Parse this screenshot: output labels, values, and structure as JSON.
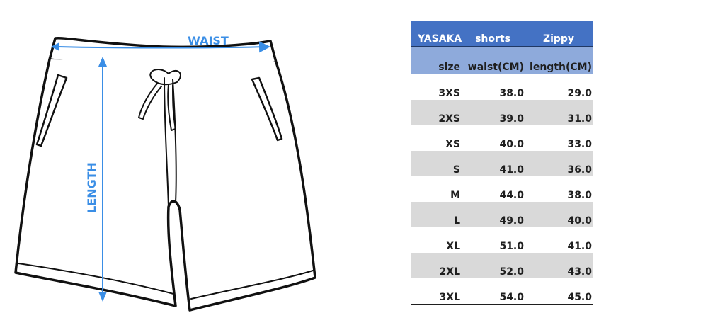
{
  "diagram": {
    "waist_label": "WAIST",
    "length_label": "LENGTH",
    "arrow_color": "#3a8ee6"
  },
  "size_chart": {
    "brand": "YASAKA",
    "product": "shorts",
    "product_name": "Zippy",
    "headers": [
      "size",
      "waist(CM)",
      "length(CM)"
    ],
    "rows": [
      {
        "size": "3XS",
        "waist": "38.0",
        "length": "29.0"
      },
      {
        "size": "2XS",
        "waist": "39.0",
        "length": "31.0"
      },
      {
        "size": "XS",
        "waist": "40.0",
        "length": "33.0"
      },
      {
        "size": "S",
        "waist": "41.0",
        "length": "36.0"
      },
      {
        "size": "M",
        "waist": "44.0",
        "length": "38.0"
      },
      {
        "size": "L",
        "waist": "49.0",
        "length": "40.0"
      },
      {
        "size": "XL",
        "waist": "51.0",
        "length": "41.0"
      },
      {
        "size": "2XL",
        "waist": "52.0",
        "length": "43.0"
      },
      {
        "size": "3XL",
        "waist": "54.0",
        "length": "45.0"
      }
    ],
    "colors": {
      "brand_row": "#4472c4",
      "header_row": "#8eaadb",
      "shaded_row": "#d9d9d9"
    }
  }
}
